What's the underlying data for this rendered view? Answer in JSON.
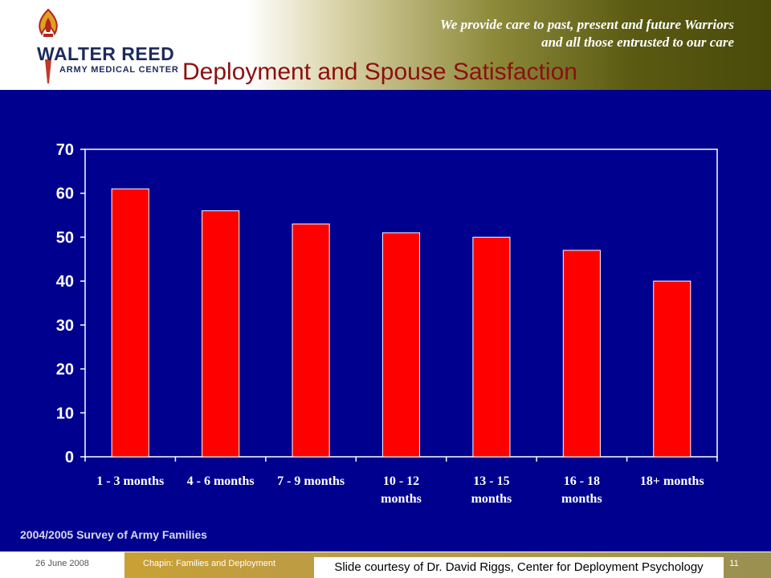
{
  "header": {
    "logo_main": "WALTER REED",
    "logo_sub": "ARMY MEDICAL CENTER",
    "tagline_line1": "We provide care to past, present and future Warriors",
    "tagline_line2": "and all those entrusted to our care"
  },
  "slide_title": "Deployment and Spouse Satisfaction",
  "source_note": "2004/2005 Survey of Army Families",
  "footer": {
    "date": "26 June 2008",
    "title": "Chapin: Families and Deployment",
    "credit": "Slide courtesy of Dr. David Riggs, Center for Deployment Psychology",
    "page": "11"
  },
  "colors": {
    "chart_background": "#00008f",
    "bar_fill": "#ff0000",
    "axis_and_text": "#ffffff",
    "title_text": "#8b1010"
  },
  "chart_data": {
    "type": "bar",
    "categories": [
      [
        "1 - 3 months"
      ],
      [
        "4 - 6 months"
      ],
      [
        "7 - 9 months"
      ],
      [
        "10 - 12",
        "months"
      ],
      [
        "13 - 15",
        "months"
      ],
      [
        "16 - 18",
        "months"
      ],
      [
        "18+ months"
      ]
    ],
    "values": [
      61,
      56,
      53,
      51,
      50,
      47,
      40
    ],
    "yticks": [
      0,
      10,
      20,
      30,
      40,
      50,
      60,
      70
    ],
    "ylim": [
      0,
      70
    ],
    "grid": false,
    "legend": "none"
  }
}
